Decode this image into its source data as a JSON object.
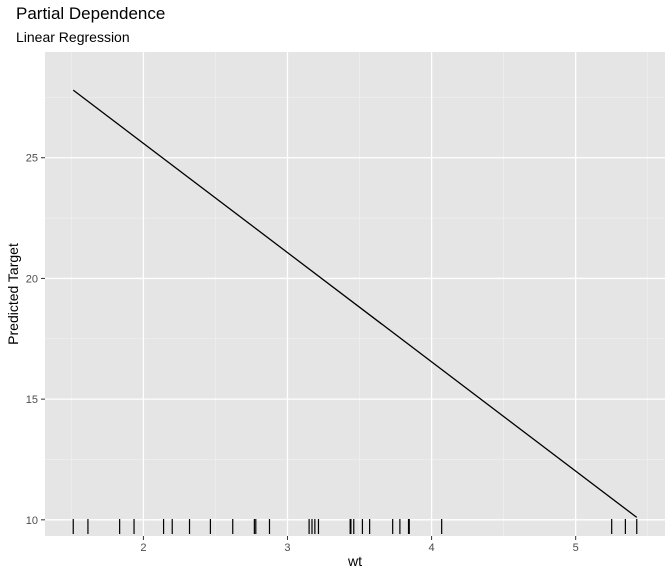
{
  "chart_data": {
    "type": "line",
    "title": "Partial Dependence",
    "subtitle": "Linear Regression",
    "xlabel": "wt",
    "ylabel": "Predicted Target",
    "xlim": [
      1.317,
      5.62
    ],
    "ylim": [
      9.33,
      29.38
    ],
    "x_ticks": [
      2,
      3,
      4,
      5
    ],
    "y_ticks": [
      10,
      15,
      20,
      25
    ],
    "grid": true,
    "series": [
      {
        "x": [
          1.513,
          5.424
        ],
        "y": [
          27.8,
          10.1
        ]
      }
    ],
    "rug_x": [
      1.513,
      1.615,
      1.835,
      1.935,
      2.14,
      2.2,
      2.32,
      2.465,
      2.62,
      2.77,
      2.78,
      2.875,
      3.15,
      3.17,
      3.19,
      3.215,
      3.435,
      3.44,
      3.46,
      3.52,
      3.57,
      3.73,
      3.78,
      3.84,
      3.845,
      4.07,
      5.25,
      5.345,
      5.424
    ]
  }
}
